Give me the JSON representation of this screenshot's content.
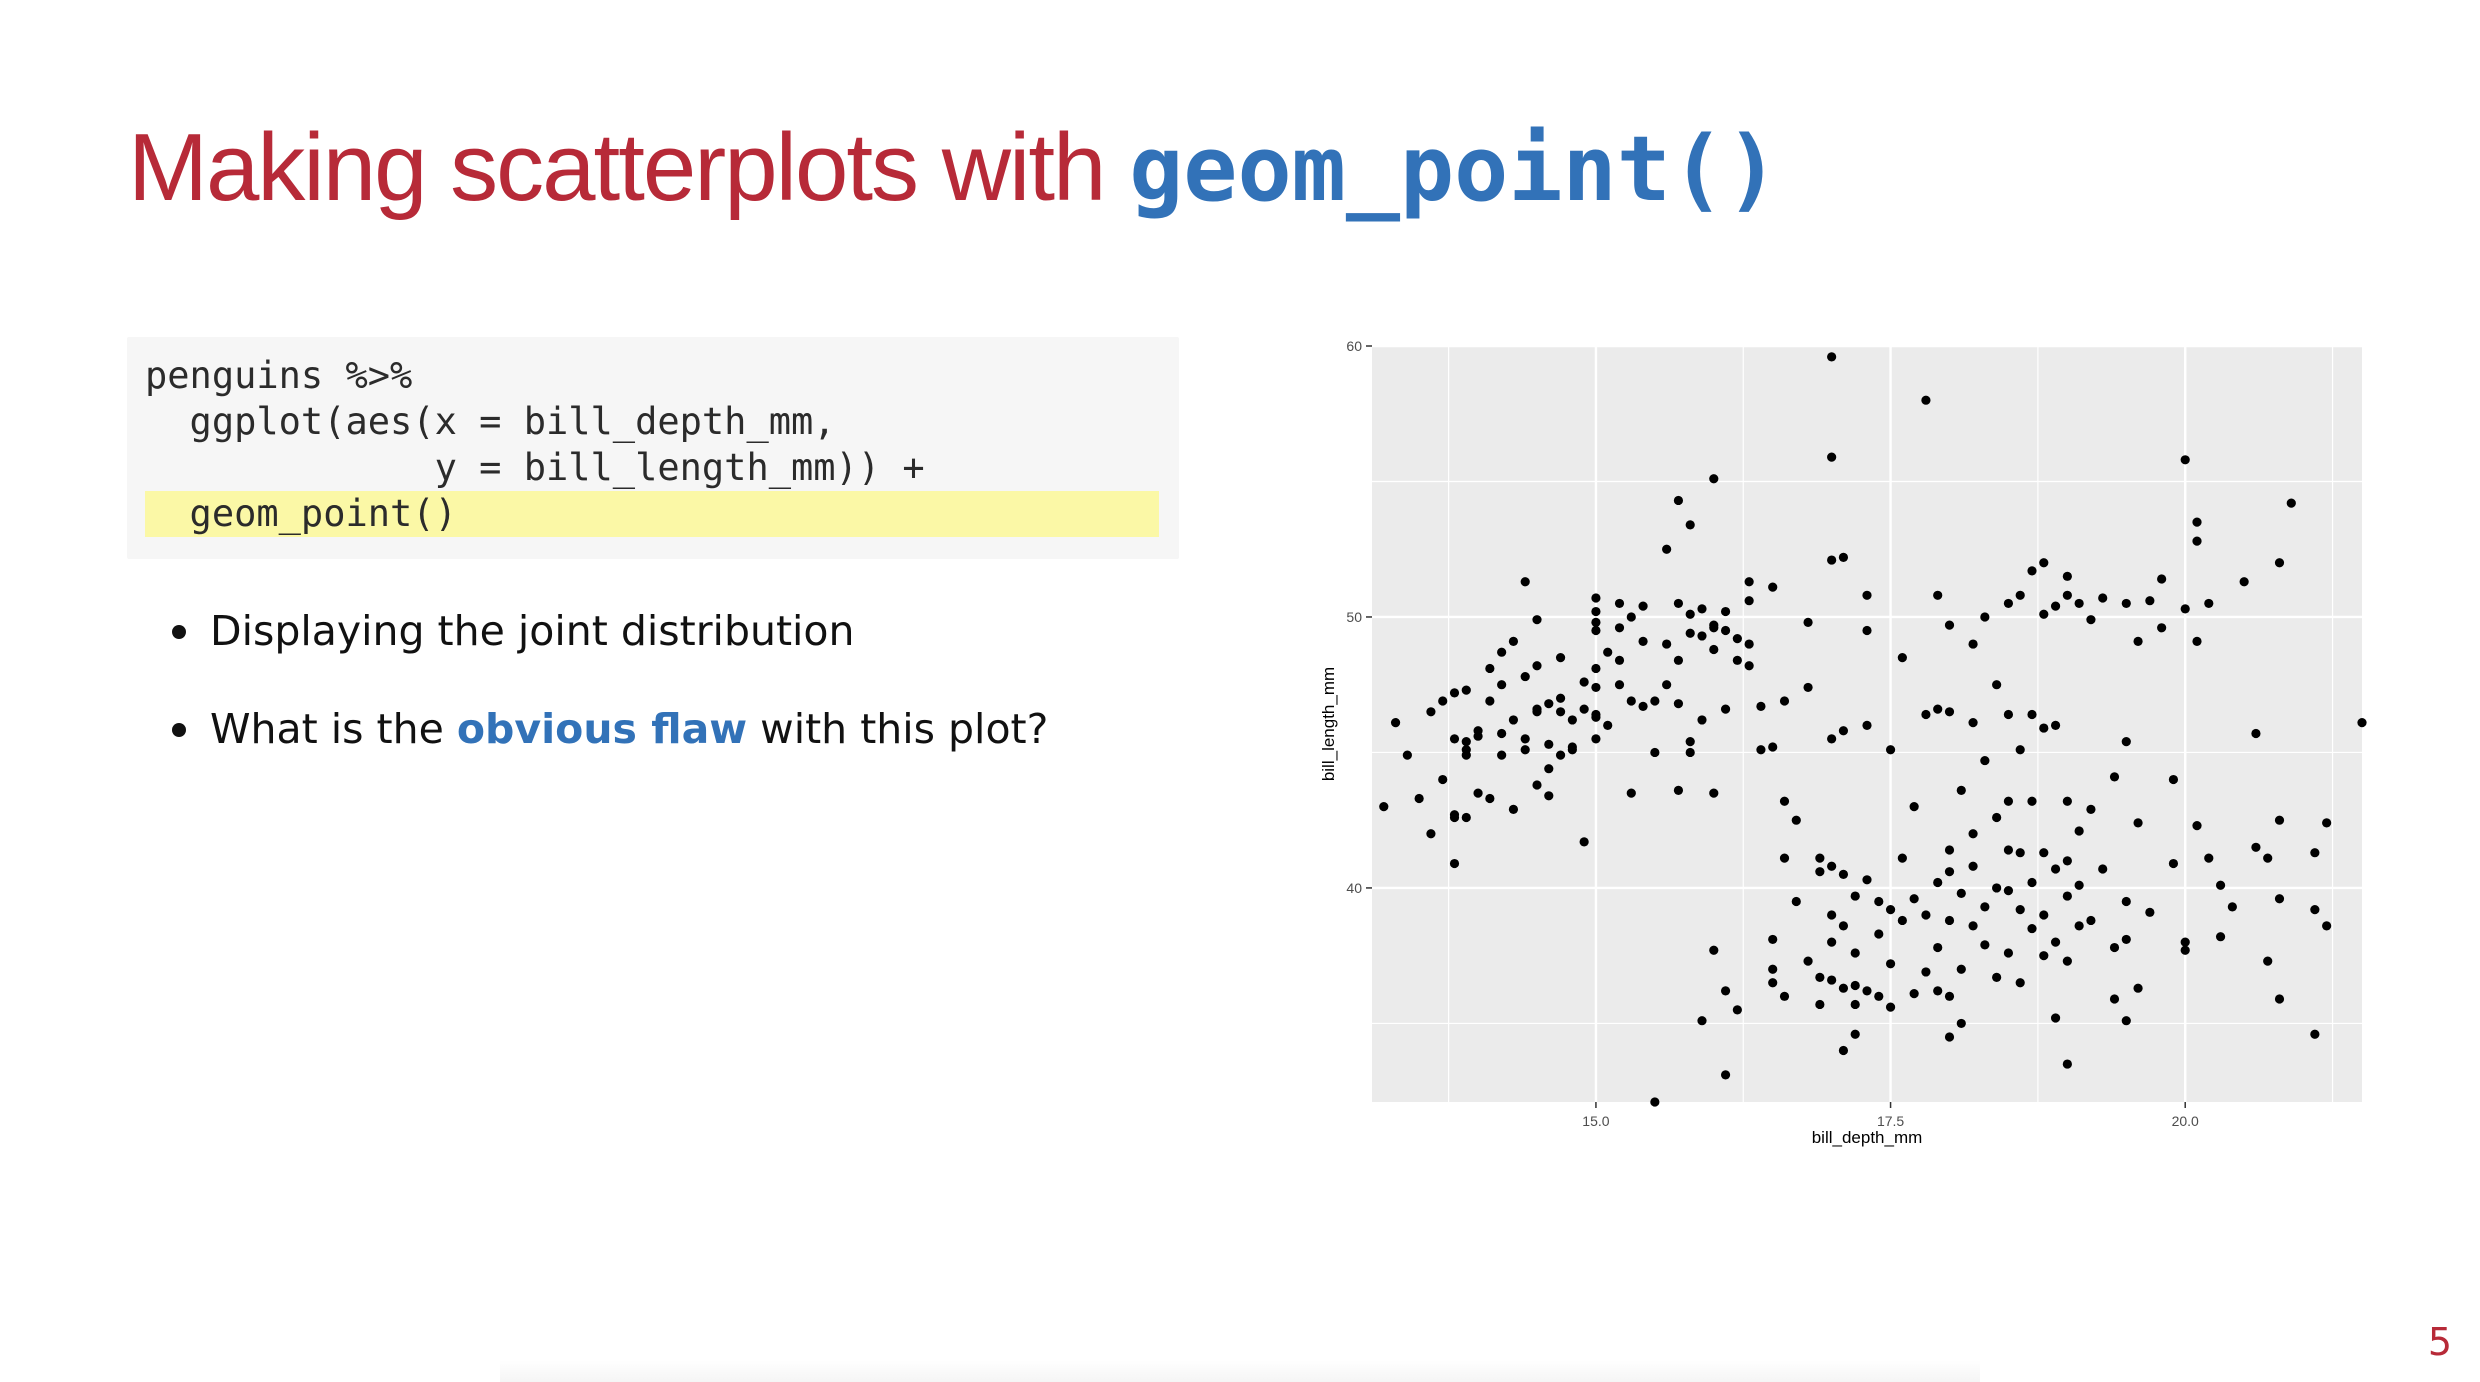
{
  "slide": {
    "title_text": "Making scatterplots with ",
    "title_code": "geom_point()",
    "page_number": "5"
  },
  "code": {
    "lines": [
      "penguins %>%",
      "  ggplot(aes(x = bill_depth_mm,",
      "             y = bill_length_mm)) +",
      "  geom_point()"
    ],
    "highlighted_line": 3,
    "highlight_color": "#fbf8a6"
  },
  "bullets": [
    {
      "text": "Displaying the joint distribution"
    },
    {
      "pre": "What is the ",
      "emph": "obvious flaw",
      "post": " with this plot?"
    }
  ],
  "colors": {
    "title": "#b72a38",
    "code_accent": "#3272b8",
    "panel": "#ebebeb",
    "grid": "#ffffff",
    "point": "#000000"
  },
  "chart_data": {
    "type": "scatter",
    "xlabel": "bill_depth_mm",
    "ylabel": "bill_length_mm",
    "xlim": [
      13.1,
      21.5
    ],
    "ylim": [
      32.1,
      60.0
    ],
    "x_ticks": [
      15.0,
      17.5,
      20.0
    ],
    "x_tick_labels": [
      "15.0",
      "17.5",
      "20.0"
    ],
    "y_ticks": [
      40,
      50,
      60
    ],
    "y_tick_labels": [
      "40",
      "50",
      "60"
    ],
    "grid": true,
    "legend": "none",
    "points": [
      [
        13.2,
        43.0
      ],
      [
        13.3,
        46.1
      ],
      [
        13.4,
        44.9
      ],
      [
        13.5,
        43.3
      ],
      [
        13.6,
        42.0
      ],
      [
        13.6,
        46.5
      ],
      [
        13.7,
        44.0
      ],
      [
        13.7,
        46.9
      ],
      [
        13.8,
        42.7
      ],
      [
        13.8,
        42.6
      ],
      [
        13.8,
        45.5
      ],
      [
        13.8,
        47.2
      ],
      [
        13.8,
        40.9
      ],
      [
        13.9,
        45.4
      ],
      [
        13.9,
        45.1
      ],
      [
        13.9,
        44.9
      ],
      [
        13.9,
        47.3
      ],
      [
        14.0,
        45.6
      ],
      [
        14.0,
        45.8
      ],
      [
        14.0,
        43.5
      ],
      [
        14.1,
        43.3
      ],
      [
        14.1,
        46.9
      ],
      [
        14.1,
        48.1
      ],
      [
        14.2,
        44.9
      ],
      [
        14.2,
        45.7
      ],
      [
        14.2,
        47.5
      ],
      [
        14.2,
        48.7
      ],
      [
        14.3,
        46.2
      ],
      [
        14.3,
        42.9
      ],
      [
        14.3,
        49.1
      ],
      [
        14.4,
        45.1
      ],
      [
        14.4,
        47.8
      ],
      [
        14.4,
        45.5
      ],
      [
        14.4,
        51.3
      ],
      [
        14.5,
        46.6
      ],
      [
        14.5,
        43.8
      ],
      [
        14.5,
        48.2
      ],
      [
        14.5,
        49.9
      ],
      [
        14.6,
        45.3
      ],
      [
        14.6,
        46.8
      ],
      [
        14.6,
        43.4
      ],
      [
        14.7,
        46.5
      ],
      [
        14.7,
        44.9
      ],
      [
        14.7,
        47.0
      ],
      [
        14.7,
        48.5
      ],
      [
        14.8,
        45.1
      ],
      [
        14.8,
        46.2
      ],
      [
        14.8,
        45.2
      ],
      [
        14.9,
        46.6
      ],
      [
        14.9,
        41.7
      ],
      [
        14.9,
        47.6
      ],
      [
        15.0,
        46.4
      ],
      [
        15.0,
        45.5
      ],
      [
        15.0,
        49.8
      ],
      [
        15.0,
        50.2
      ],
      [
        15.0,
        47.4
      ],
      [
        15.0,
        46.3
      ],
      [
        15.0,
        48.1
      ],
      [
        15.0,
        49.5
      ],
      [
        15.0,
        50.7
      ],
      [
        15.1,
        46.0
      ],
      [
        15.1,
        48.7
      ],
      [
        15.2,
        47.5
      ],
      [
        15.2,
        48.4
      ],
      [
        15.2,
        49.6
      ],
      [
        15.2,
        50.5
      ],
      [
        15.3,
        50.0
      ],
      [
        15.3,
        43.5
      ],
      [
        15.3,
        46.9
      ],
      [
        15.4,
        49.1
      ],
      [
        15.4,
        50.4
      ],
      [
        15.4,
        46.7
      ],
      [
        15.5,
        45.0
      ],
      [
        15.5,
        46.9
      ],
      [
        15.5,
        32.1
      ],
      [
        15.6,
        47.5
      ],
      [
        15.6,
        49.0
      ],
      [
        15.6,
        52.5
      ],
      [
        15.7,
        48.4
      ],
      [
        15.7,
        50.5
      ],
      [
        15.7,
        43.6
      ],
      [
        15.7,
        54.3
      ],
      [
        15.7,
        46.8
      ],
      [
        15.8,
        45.0
      ],
      [
        15.8,
        50.1
      ],
      [
        15.8,
        49.4
      ],
      [
        15.8,
        45.4
      ],
      [
        15.8,
        53.4
      ],
      [
        15.9,
        46.2
      ],
      [
        15.9,
        49.3
      ],
      [
        15.9,
        50.3
      ],
      [
        15.9,
        35.1
      ],
      [
        16.0,
        48.8
      ],
      [
        16.0,
        49.6
      ],
      [
        16.0,
        43.5
      ],
      [
        16.0,
        49.7
      ],
      [
        16.0,
        37.7
      ],
      [
        16.0,
        55.1
      ],
      [
        16.1,
        49.5
      ],
      [
        16.1,
        50.2
      ],
      [
        16.1,
        46.6
      ],
      [
        16.1,
        36.2
      ],
      [
        16.1,
        33.1
      ],
      [
        16.2,
        49.2
      ],
      [
        16.2,
        48.4
      ],
      [
        16.2,
        35.5
      ],
      [
        16.3,
        51.3
      ],
      [
        16.3,
        49.0
      ],
      [
        16.3,
        50.6
      ],
      [
        16.3,
        48.2
      ],
      [
        16.4,
        45.1
      ],
      [
        16.4,
        46.7
      ],
      [
        16.5,
        51.1
      ],
      [
        16.5,
        45.2
      ],
      [
        16.5,
        38.1
      ],
      [
        16.5,
        37.0
      ],
      [
        16.5,
        36.5
      ],
      [
        16.6,
        46.9
      ],
      [
        16.6,
        43.2
      ],
      [
        16.6,
        41.1
      ],
      [
        16.6,
        36.0
      ],
      [
        16.7,
        42.5
      ],
      [
        16.7,
        39.5
      ],
      [
        16.8,
        49.8
      ],
      [
        16.8,
        47.4
      ],
      [
        16.8,
        37.3
      ],
      [
        16.9,
        41.1
      ],
      [
        16.9,
        40.6
      ],
      [
        16.9,
        36.7
      ],
      [
        16.9,
        35.7
      ],
      [
        17.0,
        52.1
      ],
      [
        17.0,
        55.9
      ],
      [
        17.0,
        45.5
      ],
      [
        17.0,
        40.8
      ],
      [
        17.0,
        59.6
      ],
      [
        17.0,
        39.0
      ],
      [
        17.0,
        38.0
      ],
      [
        17.0,
        36.6
      ],
      [
        17.1,
        52.2
      ],
      [
        17.1,
        45.8
      ],
      [
        17.1,
        40.5
      ],
      [
        17.1,
        38.6
      ],
      [
        17.1,
        36.3
      ],
      [
        17.1,
        34.0
      ],
      [
        17.2,
        39.7
      ],
      [
        17.2,
        37.6
      ],
      [
        17.2,
        36.4
      ],
      [
        17.2,
        35.7
      ],
      [
        17.2,
        34.6
      ],
      [
        17.3,
        50.8
      ],
      [
        17.3,
        49.5
      ],
      [
        17.3,
        46.0
      ],
      [
        17.3,
        40.3
      ],
      [
        17.3,
        36.2
      ],
      [
        17.4,
        39.5
      ],
      [
        17.4,
        38.3
      ],
      [
        17.4,
        36.0
      ],
      [
        17.5,
        39.2
      ],
      [
        17.5,
        45.1
      ],
      [
        17.5,
        37.2
      ],
      [
        17.5,
        35.6
      ],
      [
        17.6,
        48.5
      ],
      [
        17.6,
        41.1
      ],
      [
        17.6,
        38.8
      ],
      [
        17.7,
        43.0
      ],
      [
        17.7,
        39.6
      ],
      [
        17.7,
        36.1
      ],
      [
        17.8,
        46.4
      ],
      [
        17.8,
        39.0
      ],
      [
        17.8,
        36.9
      ],
      [
        17.8,
        58.0
      ],
      [
        17.9,
        46.6
      ],
      [
        17.9,
        50.8
      ],
      [
        17.9,
        40.2
      ],
      [
        17.9,
        36.2
      ],
      [
        17.9,
        37.8
      ],
      [
        18.0,
        49.7
      ],
      [
        18.0,
        46.5
      ],
      [
        18.0,
        41.4
      ],
      [
        18.0,
        40.6
      ],
      [
        18.0,
        38.8
      ],
      [
        18.0,
        36.0
      ],
      [
        18.0,
        34.5
      ],
      [
        18.1,
        43.6
      ],
      [
        18.1,
        39.8
      ],
      [
        18.1,
        37.0
      ],
      [
        18.1,
        35.0
      ],
      [
        18.2,
        49.0
      ],
      [
        18.2,
        46.1
      ],
      [
        18.2,
        42.0
      ],
      [
        18.2,
        40.8
      ],
      [
        18.2,
        38.6
      ],
      [
        18.3,
        50.0
      ],
      [
        18.3,
        44.7
      ],
      [
        18.3,
        39.3
      ],
      [
        18.3,
        37.9
      ],
      [
        18.4,
        47.5
      ],
      [
        18.4,
        42.6
      ],
      [
        18.4,
        40.0
      ],
      [
        18.4,
        36.7
      ],
      [
        18.5,
        50.5
      ],
      [
        18.5,
        46.4
      ],
      [
        18.5,
        43.2
      ],
      [
        18.5,
        41.4
      ],
      [
        18.5,
        39.9
      ],
      [
        18.5,
        37.6
      ],
      [
        18.6,
        50.8
      ],
      [
        18.6,
        45.1
      ],
      [
        18.6,
        41.3
      ],
      [
        18.6,
        39.2
      ],
      [
        18.6,
        36.5
      ],
      [
        18.7,
        51.7
      ],
      [
        18.7,
        46.4
      ],
      [
        18.7,
        43.2
      ],
      [
        18.7,
        40.2
      ],
      [
        18.7,
        38.5
      ],
      [
        18.8,
        52.0
      ],
      [
        18.8,
        50.1
      ],
      [
        18.8,
        45.9
      ],
      [
        18.8,
        41.3
      ],
      [
        18.8,
        39.0
      ],
      [
        18.8,
        37.5
      ],
      [
        18.9,
        50.4
      ],
      [
        18.9,
        46.0
      ],
      [
        18.9,
        40.7
      ],
      [
        18.9,
        38.0
      ],
      [
        18.9,
        35.2
      ],
      [
        19.0,
        51.5
      ],
      [
        19.0,
        50.8
      ],
      [
        19.0,
        43.2
      ],
      [
        19.0,
        41.0
      ],
      [
        19.0,
        39.7
      ],
      [
        19.0,
        37.3
      ],
      [
        19.0,
        33.5
      ],
      [
        19.1,
        50.5
      ],
      [
        19.1,
        42.1
      ],
      [
        19.1,
        40.1
      ],
      [
        19.1,
        38.6
      ],
      [
        19.2,
        49.9
      ],
      [
        19.2,
        42.9
      ],
      [
        19.2,
        38.8
      ],
      [
        19.3,
        50.7
      ],
      [
        19.3,
        40.7
      ],
      [
        19.4,
        44.1
      ],
      [
        19.4,
        37.8
      ],
      [
        19.4,
        35.9
      ],
      [
        19.5,
        50.5
      ],
      [
        19.5,
        45.4
      ],
      [
        19.5,
        39.5
      ],
      [
        19.5,
        38.1
      ],
      [
        19.5,
        35.1
      ],
      [
        19.6,
        49.1
      ],
      [
        19.6,
        42.4
      ],
      [
        19.6,
        36.3
      ],
      [
        19.7,
        50.6
      ],
      [
        19.7,
        39.1
      ],
      [
        19.8,
        49.6
      ],
      [
        19.8,
        51.4
      ],
      [
        19.9,
        44.0
      ],
      [
        19.9,
        40.9
      ],
      [
        20.0,
        50.3
      ],
      [
        20.0,
        55.8
      ],
      [
        20.0,
        38.0
      ],
      [
        20.0,
        37.7
      ],
      [
        20.1,
        52.8
      ],
      [
        20.1,
        53.5
      ],
      [
        20.1,
        49.1
      ],
      [
        20.1,
        42.3
      ],
      [
        20.2,
        50.5
      ],
      [
        20.2,
        41.1
      ],
      [
        20.3,
        38.2
      ],
      [
        20.3,
        40.1
      ],
      [
        20.5,
        51.3
      ],
      [
        20.6,
        45.7
      ],
      [
        20.7,
        37.3
      ],
      [
        20.7,
        41.1
      ],
      [
        20.8,
        39.6
      ],
      [
        20.8,
        52.0
      ],
      [
        20.8,
        35.9
      ],
      [
        20.9,
        54.2
      ],
      [
        21.1,
        39.2
      ],
      [
        21.1,
        41.3
      ],
      [
        21.2,
        38.6
      ],
      [
        21.2,
        42.4
      ],
      [
        21.5,
        46.1
      ],
      [
        20.4,
        39.3
      ],
      [
        20.6,
        41.5
      ],
      [
        21.1,
        34.6
      ],
      [
        20.8,
        42.5
      ],
      [
        13.9,
        42.6
      ],
      [
        14.5,
        46.5
      ],
      [
        14.6,
        44.4
      ]
    ]
  }
}
